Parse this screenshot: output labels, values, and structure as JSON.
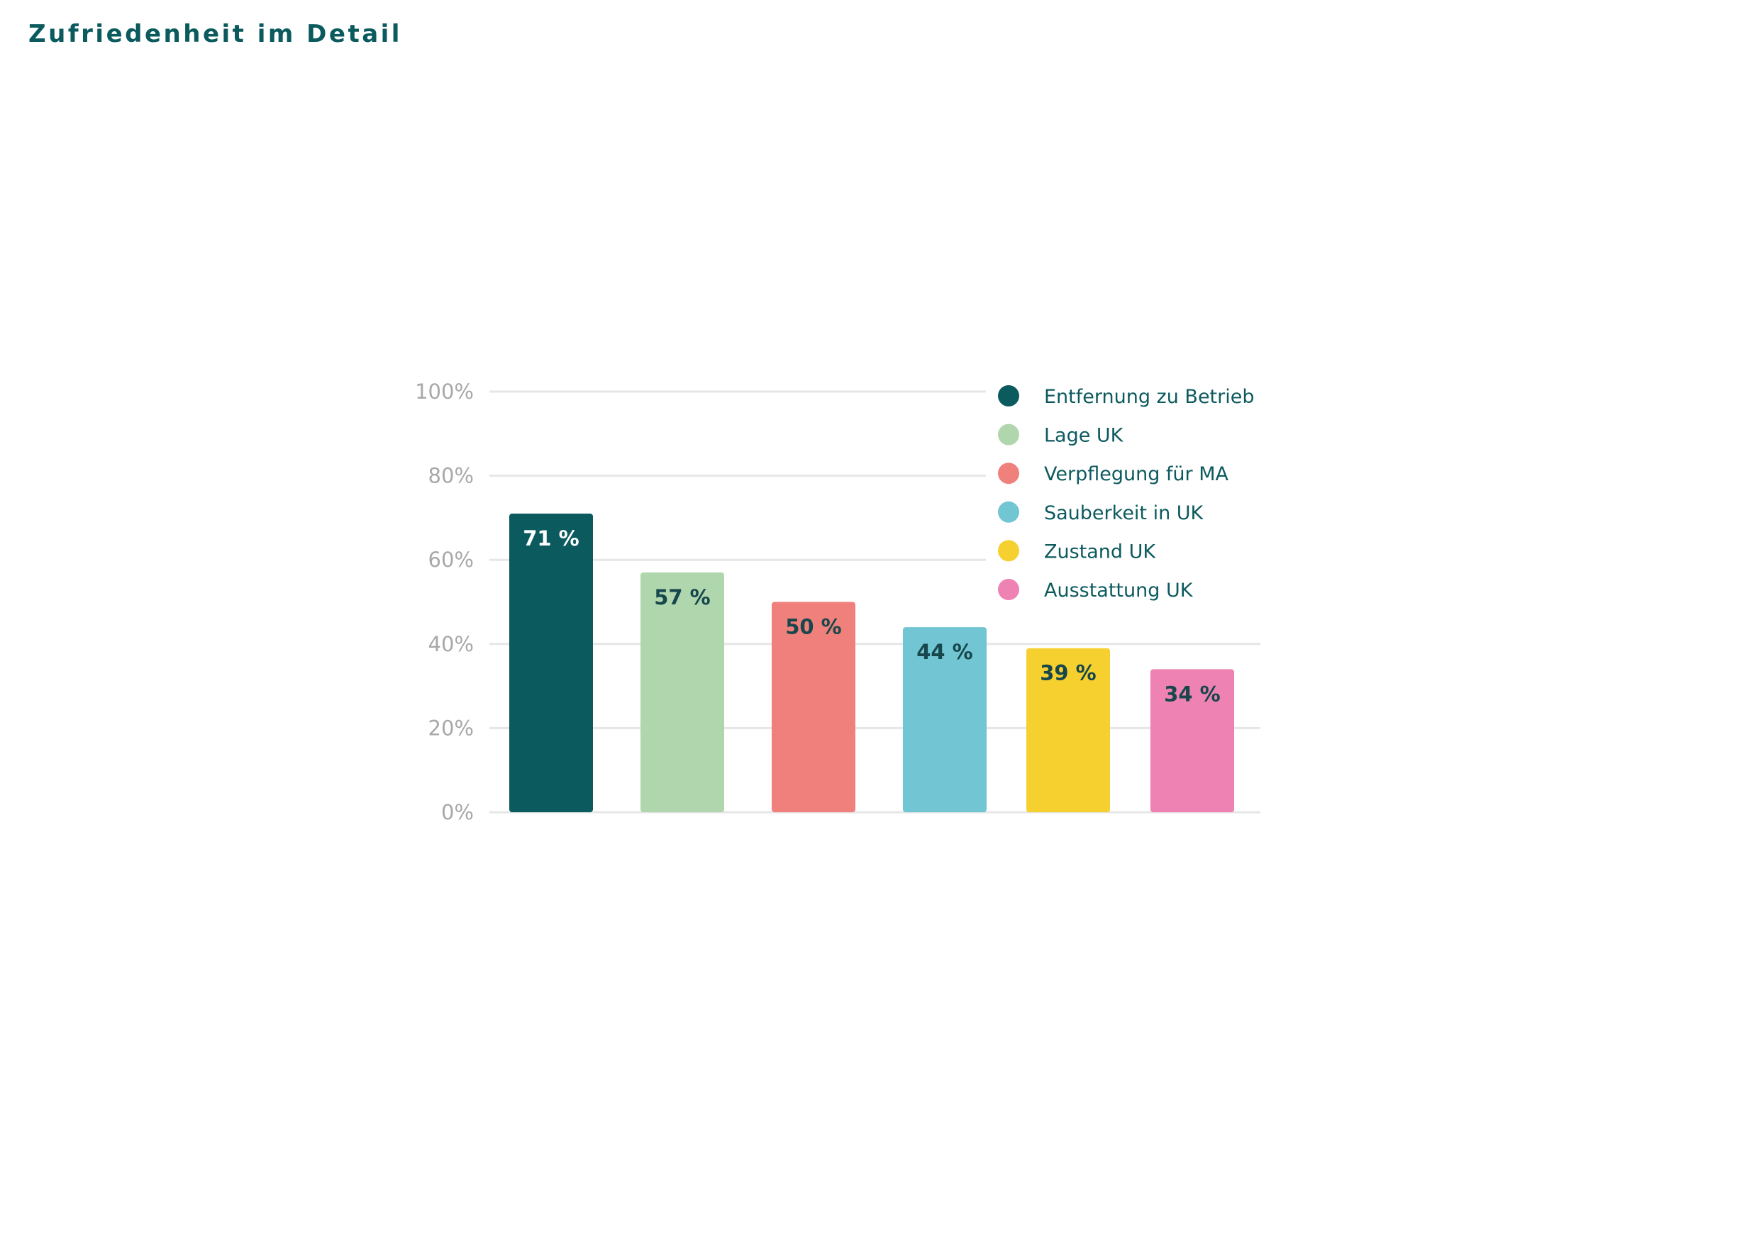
{
  "page": {
    "title": "Zufriedenheit im Detail"
  },
  "colors": {
    "title": "#0a5a5e",
    "grid": "#e6e6e6",
    "tick_text": "#a8a8a8",
    "legend_text": "#0d5a5e",
    "label_on_dark": "#ffffff",
    "label_on_light": "#17474c"
  },
  "chart_data": {
    "type": "bar",
    "title": "",
    "xlabel": "",
    "ylabel": "",
    "ylim": [
      0,
      100
    ],
    "yticks": [
      0,
      20,
      40,
      60,
      80,
      100
    ],
    "ytick_labels": [
      "0%",
      "20%",
      "40%",
      "60%",
      "80%",
      "100%"
    ],
    "grid": true,
    "legend_position": "top-right",
    "categories": [
      "Entfernung zu Betrieb",
      "Lage UK",
      "Verpflegung für MA",
      "Sauberkeit in UK",
      "Zustand UK",
      "Ausstattung UK"
    ],
    "values": [
      71,
      57,
      50,
      44,
      39,
      34
    ],
    "data_labels": [
      "71 %",
      "57 %",
      "50 %",
      "44 %",
      "39 %",
      "34 %"
    ],
    "colors": [
      "#0a5a5e",
      "#b0d6ae",
      "#ef807b",
      "#72c5d2",
      "#f6d02e",
      "#ee82b3"
    ],
    "label_colors": [
      "#ffffff",
      "#17474c",
      "#17474c",
      "#17474c",
      "#17474c",
      "#17474c"
    ]
  }
}
